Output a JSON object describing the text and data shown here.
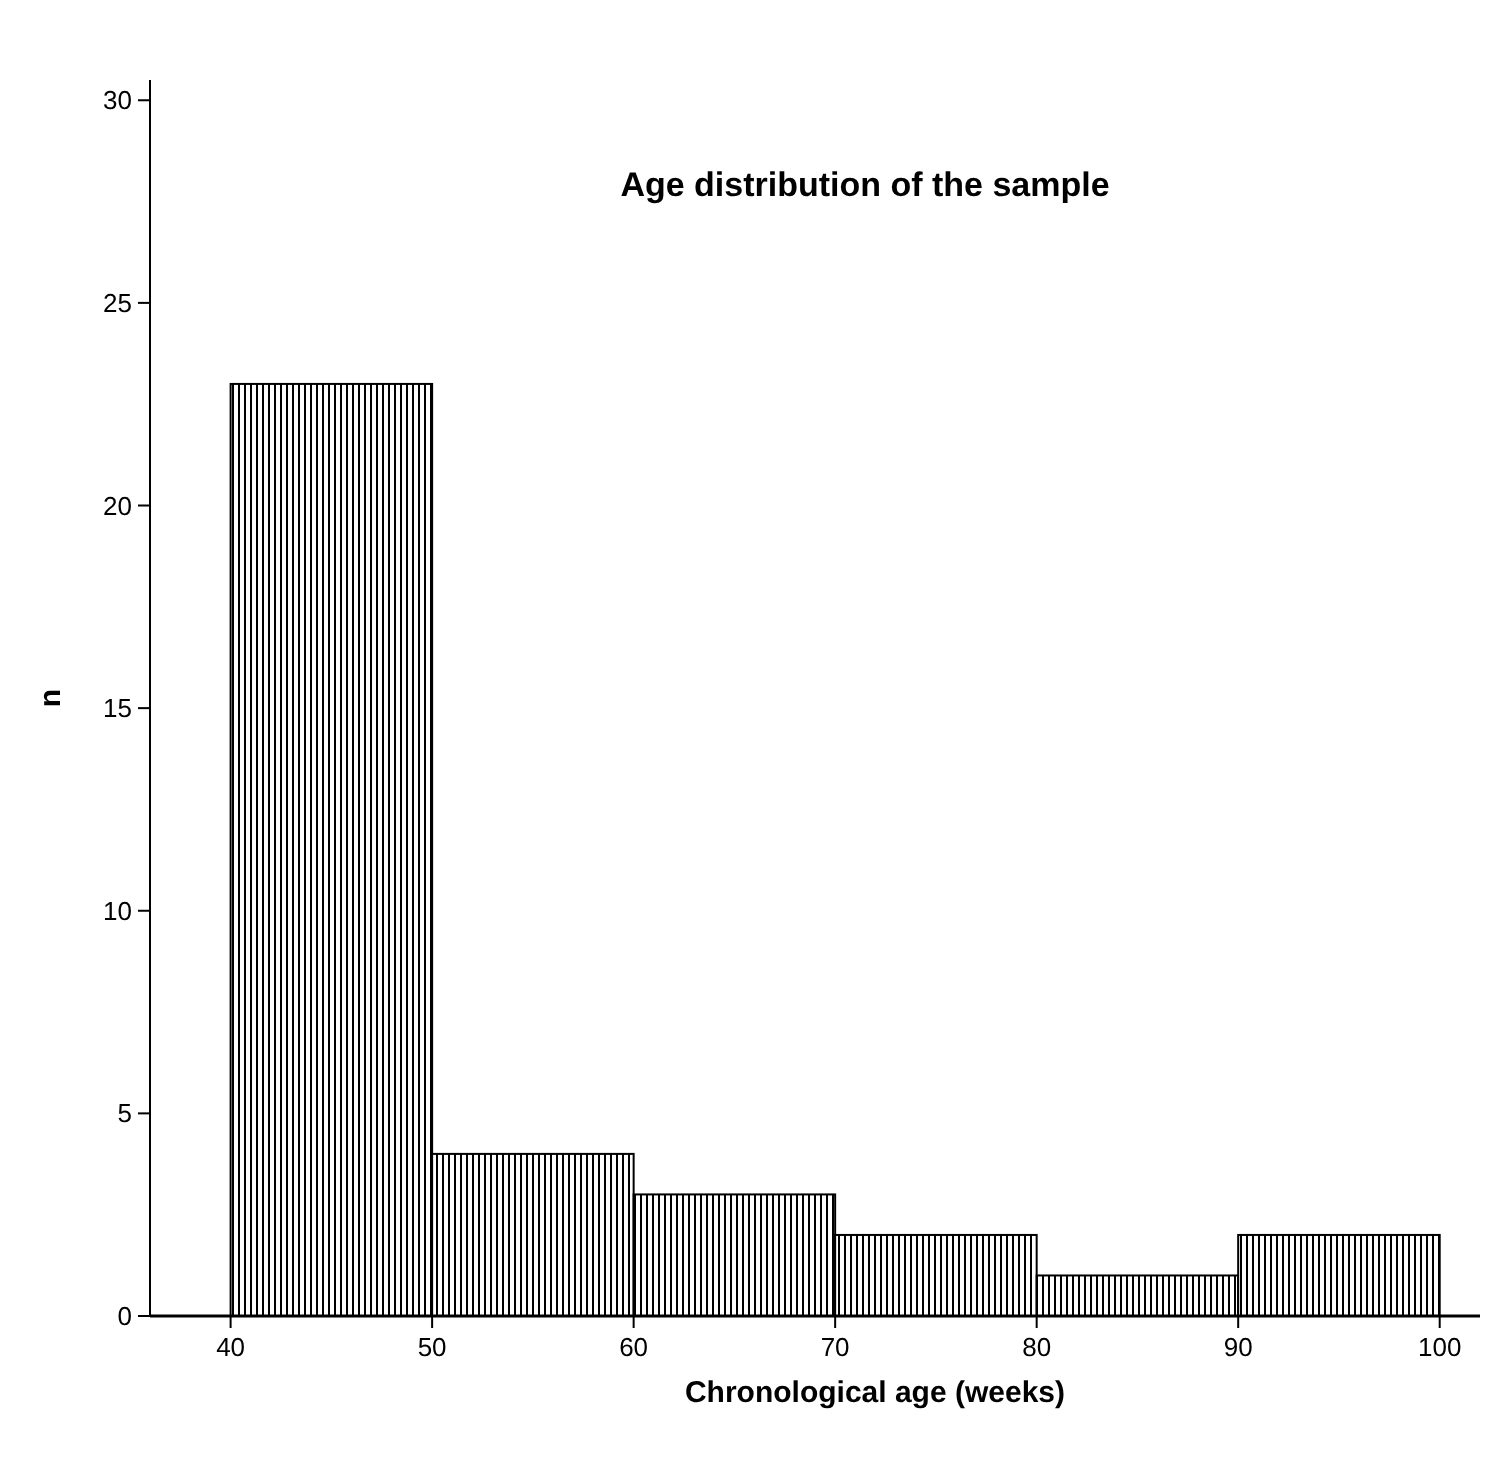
{
  "chart_data": {
    "type": "histogram",
    "title": "Age distribution of the sample",
    "xlabel": "Chronological age (weeks)",
    "ylabel": "n",
    "bins": [
      40,
      50,
      60,
      70,
      80,
      90,
      100
    ],
    "values": [
      23,
      4,
      3,
      2,
      1,
      2
    ],
    "color": "#000000",
    "xlim": [
      36,
      102
    ],
    "xticks": [
      40,
      50,
      60,
      70,
      80,
      90,
      100
    ],
    "ylim": [
      0,
      30.5
    ],
    "yticks": [
      0,
      5,
      10,
      15,
      20,
      25,
      30
    ]
  }
}
